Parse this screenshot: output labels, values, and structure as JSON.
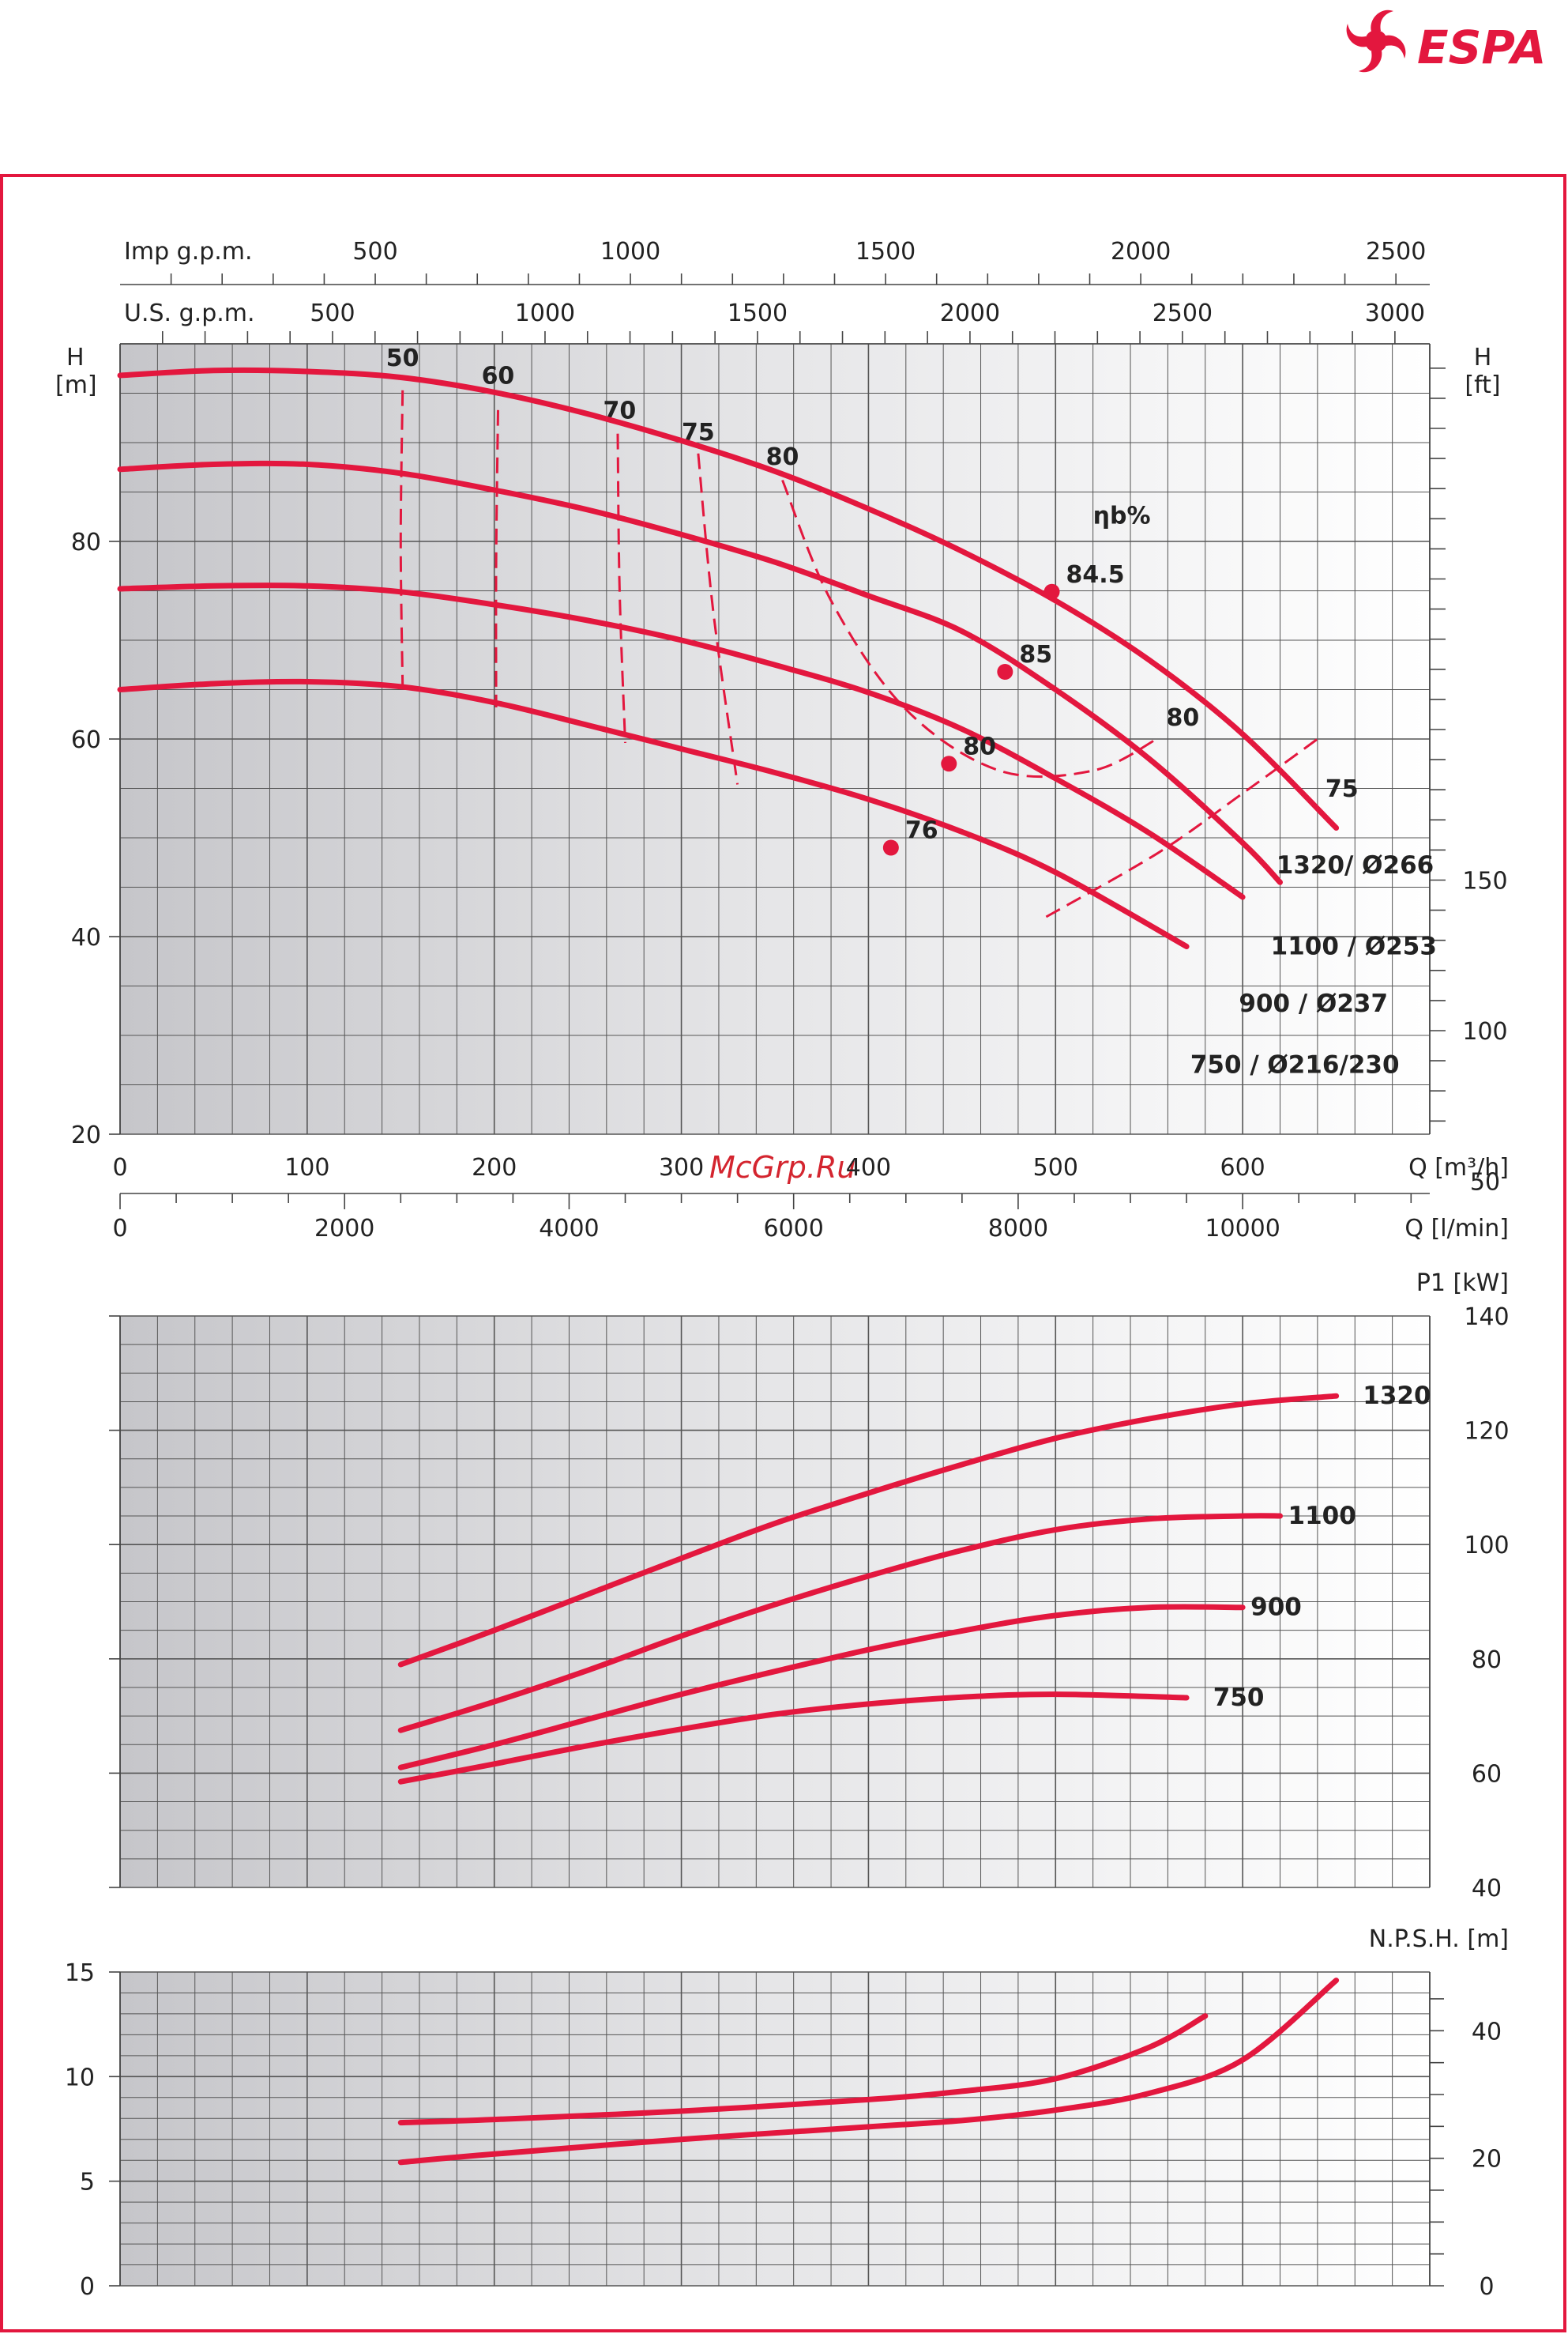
{
  "brand": {
    "name": "ESPA",
    "color": "#e3173e"
  },
  "watermark": "McGrp.Ru",
  "colors": {
    "curve": "#e3173e",
    "frame": "#e3173e",
    "grid": "#555555",
    "grid_bg_dark": "#c9c9cc",
    "grid_bg_light": "#ffffff"
  },
  "chart_data": [
    {
      "id": "head",
      "type": "line",
      "x_unit": "Q [m³/h]",
      "x_unit_lmin": "Q [l/min]",
      "top_axis_imp_label": "Imp g.p.m.",
      "top_axis_us_label": "U.S. g.p.m.",
      "ylabel_left": "H\n[m]",
      "ylabel_right": "H\n[ft]",
      "xlim": [
        0,
        700
      ],
      "ylim": [
        20,
        100
      ],
      "x_ticks": [
        "0",
        "100",
        "200",
        "300",
        "400",
        "500",
        "600"
      ],
      "lmin_ticks": [
        "0",
        "2000",
        "4000",
        "6000",
        "8000",
        "10000"
      ],
      "imp_ticks": [
        "500",
        "1000",
        "1500",
        "2000",
        "2500"
      ],
      "us_ticks": [
        "500",
        "1000",
        "1500",
        "2000",
        "2500",
        "3000"
      ],
      "y_ticks_left": [
        "20",
        "40",
        "60",
        "80"
      ],
      "y_ticks_right": [
        "50",
        "100",
        "150"
      ],
      "eff_title": "ηb%",
      "series": [
        {
          "name": "1320/ Ø266",
          "x": [
            0,
            50,
            100,
            150,
            200,
            250,
            300,
            350,
            400,
            450,
            500,
            550,
            600,
            650
          ],
          "y": [
            96.8,
            97.3,
            97.2,
            96.6,
            95.1,
            92.9,
            90.2,
            87.1,
            83.3,
            79.0,
            74.0,
            68.0,
            60.5,
            51.0
          ]
        },
        {
          "name": "1100 / Ø253",
          "x": [
            0,
            50,
            100,
            150,
            200,
            250,
            300,
            350,
            400,
            450,
            500,
            550,
            600,
            620
          ],
          "y": [
            87.3,
            87.8,
            87.8,
            86.9,
            85.2,
            83.2,
            80.7,
            77.9,
            74.5,
            70.9,
            65.0,
            58.0,
            49.5,
            45.5
          ]
        },
        {
          "name": "900 / Ø237",
          "x": [
            0,
            50,
            100,
            150,
            200,
            250,
            300,
            350,
            400,
            450,
            500,
            550,
            600
          ],
          "y": [
            75.2,
            75.5,
            75.5,
            74.9,
            73.6,
            72.0,
            70.0,
            67.5,
            64.7,
            61.0,
            56.0,
            50.5,
            44.0
          ]
        },
        {
          "name": "750 / Ø216/230",
          "x": [
            0,
            50,
            100,
            150,
            200,
            250,
            300,
            350,
            400,
            450,
            500,
            570
          ],
          "y": [
            65.0,
            65.6,
            65.8,
            65.3,
            63.7,
            61.4,
            59.0,
            56.6,
            53.9,
            50.6,
            46.5,
            39.0
          ]
        }
      ],
      "efficiency_lines": [
        {
          "label": "50",
          "x": [
            151,
            150,
            151
          ],
          "y": [
            95.3,
            80.0,
            65.3
          ]
        },
        {
          "label": "60",
          "x": [
            202,
            201,
            201
          ],
          "y": [
            93.3,
            78.0,
            63.2
          ]
        },
        {
          "label": "70",
          "x": [
            266,
            267,
            270
          ],
          "y": [
            90.9,
            75.0,
            59.6
          ]
        },
        {
          "label": "75",
          "x": [
            309,
            317,
            330
          ],
          "y": [
            88.9,
            73.0,
            55.4
          ]
        },
        {
          "label": "80",
          "x": [
            354,
            380,
            420,
            470,
            520,
            555
          ],
          "y": [
            86.2,
            74.0,
            63.0,
            56.8,
            56.8,
            60.1
          ]
        },
        {
          "label": "75",
          "x": [
            495,
            555,
            600,
            640
          ],
          "y": [
            42.0,
            48.5,
            54.5,
            60.0
          ]
        }
      ],
      "efficiency_labels": [
        "50",
        "60",
        "70",
        "75",
        "80",
        "80",
        "75"
      ],
      "bep_points": [
        {
          "label": "84.5",
          "x": 498,
          "y": 74.9
        },
        {
          "label": "85",
          "x": 473,
          "y": 66.8
        },
        {
          "label": "80",
          "x": 443,
          "y": 57.5
        },
        {
          "label": "76",
          "x": 412,
          "y": 49.0
        }
      ]
    },
    {
      "id": "power",
      "type": "line",
      "ylabel_right": "P1 [kW]",
      "ylim": [
        40,
        140
      ],
      "y_ticks_right": [
        "40",
        "60",
        "80",
        "100",
        "120",
        "140"
      ],
      "series": [
        {
          "name": "1320",
          "x": [
            150,
            200,
            250,
            300,
            350,
            400,
            450,
            500,
            550,
            600,
            650
          ],
          "y": [
            79.0,
            85.0,
            91.3,
            97.6,
            103.7,
            109.0,
            114.0,
            118.6,
            122.0,
            124.6,
            126.0
          ]
        },
        {
          "name": "1100",
          "x": [
            150,
            200,
            250,
            300,
            350,
            400,
            450,
            500,
            550,
            600,
            620
          ],
          "y": [
            67.5,
            72.5,
            78.0,
            84.0,
            89.5,
            94.5,
            99.0,
            102.6,
            104.5,
            105.0,
            105.0
          ]
        },
        {
          "name": "900",
          "x": [
            150,
            200,
            250,
            300,
            350,
            400,
            450,
            500,
            550,
            600
          ],
          "y": [
            61.0,
            65.0,
            69.4,
            73.8,
            77.8,
            81.6,
            84.9,
            87.6,
            89.0,
            89.0
          ]
        },
        {
          "name": "750",
          "x": [
            150,
            200,
            250,
            300,
            350,
            400,
            450,
            500,
            570
          ],
          "y": [
            58.5,
            61.6,
            64.8,
            67.7,
            70.3,
            72.1,
            73.3,
            73.8,
            73.2
          ]
        }
      ]
    },
    {
      "id": "npsh",
      "type": "line",
      "ylabel_right": "N.P.S.H. [m]",
      "ylim": [
        0,
        15
      ],
      "y_ticks_left": [
        "0",
        "5",
        "10",
        "15"
      ],
      "y_ticks_right": [
        "0",
        "20",
        "40"
      ],
      "series": [
        {
          "name": "upper",
          "x": [
            150,
            200,
            300,
            400,
            450,
            500,
            550,
            580
          ],
          "y": [
            7.8,
            7.95,
            8.35,
            8.9,
            9.3,
            9.9,
            11.4,
            12.9
          ]
        },
        {
          "name": "lower",
          "x": [
            150,
            200,
            300,
            400,
            450,
            500,
            550,
            600,
            650
          ],
          "y": [
            5.9,
            6.3,
            7.0,
            7.6,
            7.9,
            8.4,
            9.2,
            10.8,
            14.6
          ]
        }
      ]
    }
  ]
}
